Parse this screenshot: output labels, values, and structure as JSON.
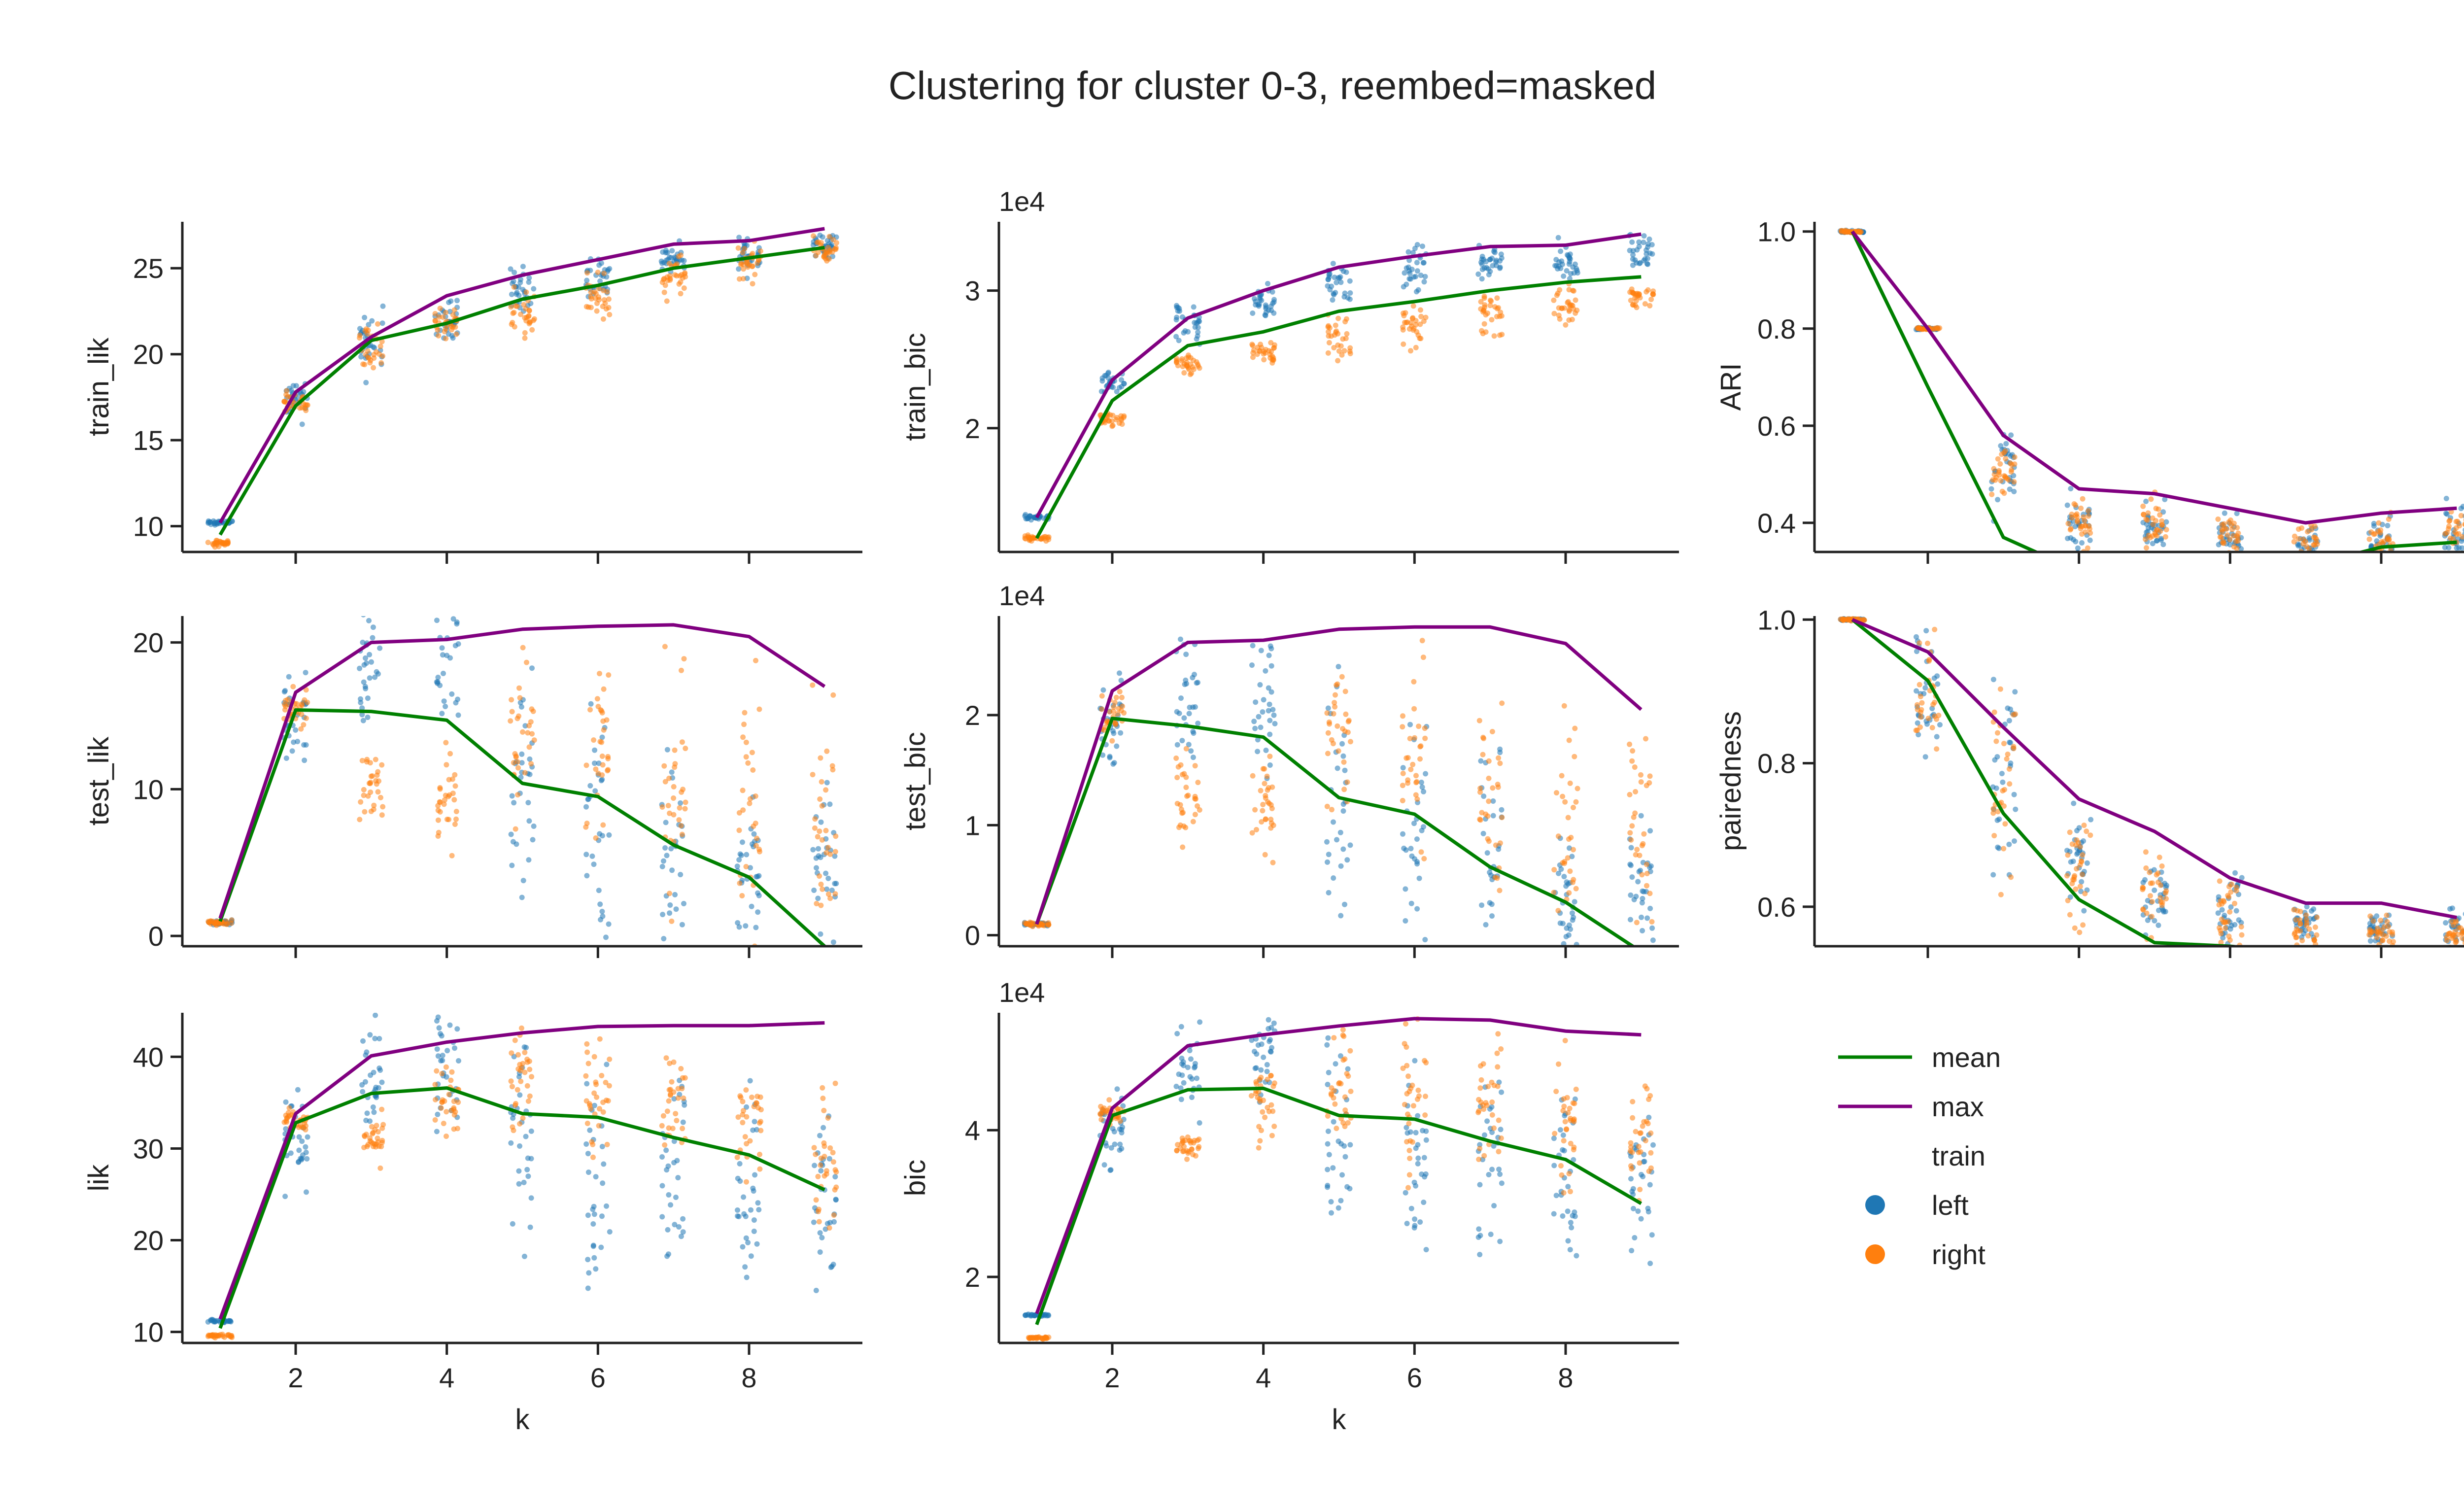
{
  "figure": {
    "title": "Clustering for cluster 0-3, reembed=masked"
  },
  "legend": {
    "items": [
      {
        "label": "mean",
        "kind": "line",
        "color": "#008000"
      },
      {
        "label": "max",
        "kind": "line",
        "color": "#800080"
      },
      {
        "label": "train",
        "kind": "header"
      },
      {
        "label": "left",
        "kind": "dot",
        "color": "#1f77b4"
      },
      {
        "label": "right",
        "kind": "dot",
        "color": "#ff7f0e"
      }
    ]
  },
  "chart_data": [
    {
      "type": "line",
      "id": "train_lik",
      "ylabel": "train_lik",
      "xlabel": "",
      "offset_text": "",
      "x": [
        1,
        2,
        3,
        4,
        5,
        6,
        7,
        8,
        9
      ],
      "xlim": [
        0.5,
        9.5
      ],
      "ylim": [
        8.5,
        27.7
      ],
      "yticks": [
        10,
        15,
        20,
        25
      ],
      "series": [
        {
          "name": "mean",
          "color": "#008000",
          "values": [
            9.5,
            17.0,
            20.8,
            21.8,
            23.2,
            24.0,
            25.0,
            25.6,
            26.2
          ]
        },
        {
          "name": "max",
          "color": "#800080",
          "values": [
            10.2,
            17.8,
            21.0,
            23.4,
            24.6,
            25.5,
            26.4,
            26.6,
            27.3
          ]
        }
      ],
      "scatter": {
        "left": {
          "center": [
            10.2,
            17.4,
            20.6,
            22.0,
            23.6,
            24.6,
            25.4,
            25.8,
            26.4
          ],
          "spread": [
            0.1,
            0.7,
            1.2,
            0.9,
            0.8,
            0.7,
            0.6,
            0.6,
            0.5
          ]
        },
        "right": {
          "center": [
            9.0,
            17.2,
            20.4,
            21.8,
            22.4,
            23.2,
            24.4,
            25.2,
            26.0
          ],
          "spread": [
            0.1,
            0.5,
            0.8,
            0.6,
            0.8,
            0.9,
            0.9,
            0.7,
            0.6
          ]
        }
      }
    },
    {
      "type": "line",
      "id": "train_bic",
      "ylabel": "train_bic",
      "xlabel": "",
      "offset_text": "1e4",
      "x": [
        1,
        2,
        3,
        4,
        5,
        6,
        7,
        8,
        9
      ],
      "xlim": [
        0.5,
        9.5
      ],
      "ylim": [
        1.1,
        3.5
      ],
      "yticks": [
        2,
        3
      ],
      "series": [
        {
          "name": "mean",
          "color": "#008000",
          "values": [
            1.2,
            2.2,
            2.6,
            2.7,
            2.85,
            2.92,
            3.0,
            3.06,
            3.1
          ]
        },
        {
          "name": "max",
          "color": "#800080",
          "values": [
            1.35,
            2.35,
            2.8,
            3.0,
            3.17,
            3.25,
            3.32,
            3.33,
            3.41
          ]
        }
      ],
      "scatter": {
        "left": {
          "center": [
            1.35,
            2.33,
            2.78,
            2.92,
            3.05,
            3.15,
            3.2,
            3.22,
            3.28
          ],
          "spread": [
            0.01,
            0.05,
            0.12,
            0.07,
            0.1,
            0.1,
            0.08,
            0.07,
            0.07
          ]
        },
        "right": {
          "center": [
            1.2,
            2.07,
            2.47,
            2.55,
            2.65,
            2.72,
            2.85,
            2.9,
            2.95
          ],
          "spread": [
            0.01,
            0.03,
            0.05,
            0.05,
            0.1,
            0.12,
            0.13,
            0.1,
            0.05
          ]
        }
      }
    },
    {
      "type": "line",
      "id": "ARI",
      "ylabel": "ARI",
      "xlabel": "",
      "offset_text": "",
      "x": [
        1,
        2,
        3,
        4,
        5,
        6,
        7,
        8,
        9
      ],
      "xlim": [
        0.5,
        9.5
      ],
      "ylim": [
        0.34,
        1.02
      ],
      "yticks": [
        0.4,
        0.6,
        0.8,
        1.0
      ],
      "series": [
        {
          "name": "mean",
          "color": "#008000",
          "values": [
            1.0,
            0.68,
            0.37,
            0.3,
            0.28,
            0.3,
            0.31,
            0.35,
            0.36
          ]
        },
        {
          "name": "max",
          "color": "#800080",
          "values": [
            1.0,
            0.8,
            0.58,
            0.47,
            0.46,
            0.43,
            0.4,
            0.42,
            0.43
          ]
        }
      ],
      "scatter": {
        "left": {
          "center": [
            1.0,
            0.8,
            0.5,
            0.4,
            0.39,
            0.37,
            0.35,
            0.37,
            0.38
          ],
          "spread": [
            0.0,
            0.0,
            0.05,
            0.04,
            0.03,
            0.03,
            0.03,
            0.03,
            0.03
          ]
        },
        "right": {
          "center": [
            1.0,
            0.8,
            0.51,
            0.4,
            0.39,
            0.37,
            0.35,
            0.37,
            0.38
          ],
          "spread": [
            0.0,
            0.0,
            0.04,
            0.03,
            0.03,
            0.03,
            0.03,
            0.03,
            0.03
          ]
        }
      }
    },
    {
      "type": "line",
      "id": "test_lik",
      "ylabel": "test_lik",
      "xlabel": "",
      "offset_text": "",
      "x": [
        1,
        2,
        3,
        4,
        5,
        6,
        7,
        8,
        9
      ],
      "xlim": [
        0.5,
        9.5
      ],
      "ylim": [
        -0.7,
        21.8
      ],
      "yticks": [
        0,
        10,
        20
      ],
      "series": [
        {
          "name": "mean",
          "color": "#008000",
          "values": [
            1.0,
            15.4,
            15.3,
            14.7,
            10.4,
            9.5,
            6.2,
            4.0,
            -0.7
          ]
        },
        {
          "name": "max",
          "color": "#800080",
          "values": [
            1.2,
            16.6,
            20.0,
            20.2,
            20.9,
            21.1,
            21.2,
            20.4,
            17.0
          ]
        }
      ],
      "scatter": {
        "left": {
          "center": [
            0.9,
            15.0,
            18.5,
            19.0,
            10.0,
            7.0,
            5.0,
            4.0,
            5.0
          ],
          "spread": [
            0.1,
            2.0,
            2.5,
            3.0,
            7.0,
            6.0,
            4.5,
            3.5,
            3.0
          ]
        },
        "right": {
          "center": [
            0.9,
            15.5,
            10.0,
            10.0,
            14.0,
            13.0,
            10.0,
            9.0,
            8.0
          ],
          "spread": [
            0.1,
            1.0,
            2.0,
            2.5,
            3.5,
            4.0,
            5.0,
            5.0,
            4.0
          ]
        }
      }
    },
    {
      "type": "line",
      "id": "test_bic",
      "ylabel": "test_bic",
      "xlabel": "",
      "offset_text": "1e4",
      "x": [
        1,
        2,
        3,
        4,
        5,
        6,
        7,
        8,
        9
      ],
      "xlim": [
        0.5,
        9.5
      ],
      "ylim": [
        -0.1,
        2.9
      ],
      "yticks": [
        0,
        1,
        2
      ],
      "series": [
        {
          "name": "mean",
          "color": "#008000",
          "values": [
            0.1,
            1.97,
            1.9,
            1.8,
            1.25,
            1.1,
            0.62,
            0.3,
            -0.15
          ]
        },
        {
          "name": "max",
          "color": "#800080",
          "values": [
            0.1,
            2.22,
            2.66,
            2.68,
            2.78,
            2.8,
            2.8,
            2.65,
            2.05
          ]
        }
      ],
      "scatter": {
        "left": {
          "center": [
            0.1,
            1.9,
            2.2,
            2.2,
            1.2,
            0.9,
            0.7,
            0.4,
            0.5
          ],
          "spread": [
            0.01,
            0.3,
            0.4,
            0.4,
            0.9,
            0.8,
            0.6,
            0.4,
            0.4
          ]
        },
        "right": {
          "center": [
            0.1,
            2.0,
            1.2,
            1.2,
            1.8,
            1.6,
            1.2,
            1.0,
            1.0
          ],
          "spread": [
            0.01,
            0.15,
            0.3,
            0.3,
            0.4,
            0.5,
            0.6,
            0.6,
            0.5
          ]
        }
      }
    },
    {
      "type": "line",
      "id": "pairedness",
      "ylabel": "pairedness",
      "xlabel": "",
      "offset_text": "",
      "x": [
        1,
        2,
        3,
        4,
        5,
        6,
        7,
        8,
        9
      ],
      "xlim": [
        0.5,
        9.5
      ],
      "ylim": [
        0.545,
        1.005
      ],
      "yticks": [
        0.6,
        0.8,
        1.0
      ],
      "series": [
        {
          "name": "mean",
          "color": "#008000",
          "values": [
            1.0,
            0.915,
            0.73,
            0.61,
            0.55,
            0.545,
            0.535,
            0.53,
            0.525
          ]
        },
        {
          "name": "max",
          "color": "#800080",
          "values": [
            1.0,
            0.955,
            0.85,
            0.75,
            0.705,
            0.64,
            0.605,
            0.605,
            0.585
          ]
        }
      ],
      "scatter": {
        "left": {
          "center": [
            1.0,
            0.9,
            0.78,
            0.66,
            0.62,
            0.6,
            0.58,
            0.57,
            0.57
          ],
          "spread": [
            0.0,
            0.06,
            0.08,
            0.05,
            0.04,
            0.03,
            0.02,
            0.015,
            0.015
          ]
        },
        "right": {
          "center": [
            1.0,
            0.9,
            0.77,
            0.65,
            0.61,
            0.59,
            0.57,
            0.565,
            0.565
          ],
          "spread": [
            0.0,
            0.06,
            0.08,
            0.05,
            0.04,
            0.03,
            0.02,
            0.015,
            0.015
          ]
        }
      }
    },
    {
      "type": "line",
      "id": "lik",
      "ylabel": "lik",
      "xlabel": "k",
      "offset_text": "",
      "x": [
        1,
        2,
        3,
        4,
        5,
        6,
        7,
        8,
        9
      ],
      "xlim": [
        0.5,
        9.5
      ],
      "ylim": [
        8.8,
        44.8
      ],
      "yticks": [
        10,
        20,
        30,
        40
      ],
      "xticks": [
        2,
        4,
        6,
        8
      ],
      "series": [
        {
          "name": "mean",
          "color": "#008000",
          "values": [
            10.4,
            32.8,
            36.0,
            36.6,
            33.8,
            33.4,
            31.2,
            29.3,
            25.5
          ]
        },
        {
          "name": "max",
          "color": "#800080",
          "values": [
            11.4,
            33.8,
            40.1,
            41.6,
            42.6,
            43.3,
            43.4,
            43.4,
            43.7
          ]
        }
      ],
      "scatter": {
        "left": {
          "center": [
            11.2,
            31.0,
            38.0,
            39.0,
            30.0,
            28.0,
            28.0,
            27.0,
            24.0
          ],
          "spread": [
            0.1,
            3.0,
            4.0,
            4.0,
            7.0,
            7.0,
            7.0,
            7.0,
            6.0
          ]
        },
        "right": {
          "center": [
            9.6,
            33.0,
            31.0,
            35.0,
            37.0,
            36.0,
            34.0,
            32.0,
            30.0
          ],
          "spread": [
            0.1,
            0.8,
            1.5,
            2.5,
            3.5,
            4.0,
            5.0,
            5.0,
            5.0
          ]
        }
      }
    },
    {
      "type": "line",
      "id": "bic",
      "ylabel": "bic",
      "xlabel": "k",
      "offset_text": "1e4",
      "x": [
        1,
        2,
        3,
        4,
        5,
        6,
        7,
        8,
        9
      ],
      "xlim": [
        0.5,
        9.5
      ],
      "ylim": [
        1.1,
        5.6
      ],
      "yticks": [
        2,
        4
      ],
      "xticks": [
        2,
        4,
        6,
        8
      ],
      "series": [
        {
          "name": "mean",
          "color": "#008000",
          "values": [
            1.35,
            4.2,
            4.55,
            4.57,
            4.2,
            4.15,
            3.85,
            3.6,
            3.0
          ]
        },
        {
          "name": "max",
          "color": "#800080",
          "values": [
            1.5,
            4.3,
            5.15,
            5.3,
            5.42,
            5.52,
            5.5,
            5.35,
            5.3
          ]
        }
      ],
      "scatter": {
        "left": {
          "center": [
            1.48,
            4.0,
            4.9,
            5.0,
            3.9,
            3.6,
            3.6,
            3.4,
            3.2
          ],
          "spread": [
            0.01,
            0.4,
            0.5,
            0.5,
            0.8,
            0.8,
            0.8,
            0.8,
            0.7
          ]
        },
        "right": {
          "center": [
            1.17,
            4.25,
            3.8,
            4.3,
            4.6,
            4.5,
            4.3,
            4.1,
            3.9
          ],
          "spread": [
            0.01,
            0.1,
            0.1,
            0.4,
            0.5,
            0.6,
            0.6,
            0.6,
            0.6
          ]
        }
      }
    }
  ]
}
